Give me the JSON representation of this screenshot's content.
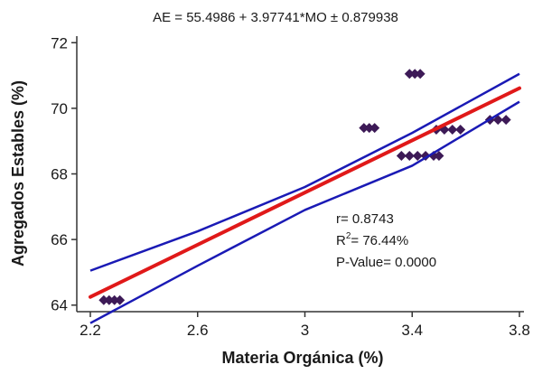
{
  "chart_data": {
    "type": "scatter",
    "title": "AE = 55.4986 + 3.97741*MO ± 0.879938",
    "xlabel": "Materia Orgánica (%)",
    "ylabel": "Agregados Estables (%)",
    "xlim": [
      2.2,
      3.8
    ],
    "ylim": [
      63.8,
      72.2
    ],
    "xticks": [
      "2.2",
      "2.6",
      "3",
      "3.4",
      "3.8"
    ],
    "xtick_values": [
      2.2,
      2.6,
      3.0,
      3.4,
      3.8
    ],
    "yticks": [
      "64",
      "66",
      "68",
      "70",
      "72"
    ],
    "ytick_values": [
      64,
      66,
      68,
      70,
      72
    ],
    "points": [
      {
        "x": 2.25,
        "y": 64.15
      },
      {
        "x": 2.27,
        "y": 64.15
      },
      {
        "x": 2.29,
        "y": 64.15
      },
      {
        "x": 2.31,
        "y": 64.15
      },
      {
        "x": 3.22,
        "y": 69.4
      },
      {
        "x": 3.24,
        "y": 69.4
      },
      {
        "x": 3.26,
        "y": 69.4
      },
      {
        "x": 3.36,
        "y": 68.55
      },
      {
        "x": 3.39,
        "y": 68.55
      },
      {
        "x": 3.42,
        "y": 68.55
      },
      {
        "x": 3.45,
        "y": 68.55
      },
      {
        "x": 3.48,
        "y": 68.55
      },
      {
        "x": 3.5,
        "y": 68.55
      },
      {
        "x": 3.39,
        "y": 71.05
      },
      {
        "x": 3.41,
        "y": 71.05
      },
      {
        "x": 3.43,
        "y": 71.05
      },
      {
        "x": 3.49,
        "y": 69.35
      },
      {
        "x": 3.52,
        "y": 69.35
      },
      {
        "x": 3.55,
        "y": 69.35
      },
      {
        "x": 3.58,
        "y": 69.35
      },
      {
        "x": 3.69,
        "y": 69.65
      },
      {
        "x": 3.72,
        "y": 69.65
      },
      {
        "x": 3.75,
        "y": 69.65
      }
    ],
    "fit": {
      "intercept": 55.4986,
      "slope": 3.97741
    },
    "confidence_band": [
      {
        "x": 2.2,
        "upper": 65.05,
        "lower": 63.45
      },
      {
        "x": 2.6,
        "upper": 66.25,
        "lower": 65.2
      },
      {
        "x": 3.0,
        "upper": 67.6,
        "lower": 66.9
      },
      {
        "x": 3.4,
        "upper": 69.25,
        "lower": 68.25
      },
      {
        "x": 3.8,
        "upper": 71.05,
        "lower": 70.2
      }
    ],
    "annotations": {
      "r_text": "r= 0.8743",
      "r2_prefix": "R",
      "r2_sup": "2",
      "r2_suffix": "= 76.44%",
      "pvalue_text": "P-Value= 0.0000"
    },
    "colors": {
      "points": "#3d1a57",
      "fit": "#e01919",
      "band": "#1a1ab5",
      "axis": "#333333"
    },
    "grid": false
  }
}
